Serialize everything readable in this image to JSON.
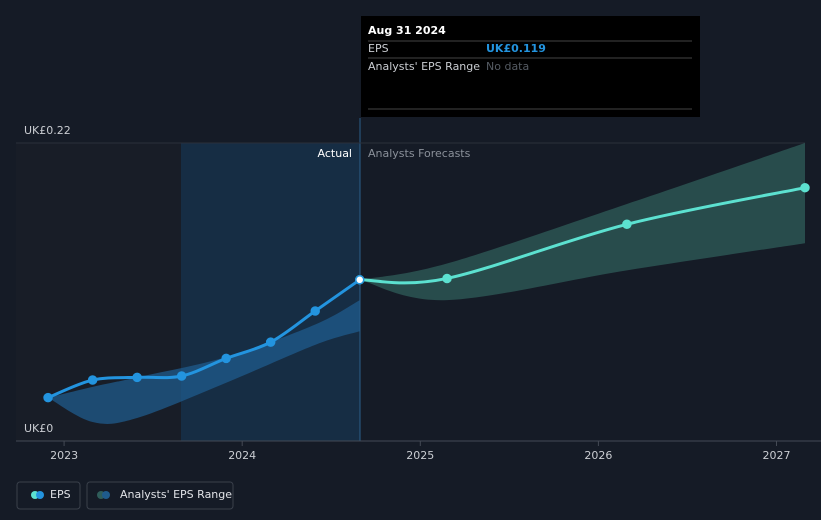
{
  "chart_data": {
    "type": "line",
    "y_axis_labels": [
      {
        "value": 0.22,
        "label": "UK£0.22"
      },
      {
        "value": 0,
        "label": "UK£0"
      }
    ],
    "ylim": [
      0,
      0.22
    ],
    "xlim": [
      2022.73,
      2027.16
    ],
    "xticks": [
      2023,
      2024,
      2025,
      2026,
      2027
    ],
    "region_labels": [
      "Actual",
      "Analysts Forecasts"
    ],
    "series": [
      {
        "name": "EPS",
        "color": "#2394df",
        "x": [
          2022.91,
          2023.16,
          2023.41,
          2023.66,
          2023.91,
          2024.16,
          2024.41,
          2024.66
        ],
        "values": [
          0.032,
          0.045,
          0.047,
          0.048,
          0.061,
          0.073,
          0.096,
          0.119
        ]
      }
    ],
    "forecast": {
      "color": "#5ce1d0",
      "x": [
        2024.66,
        2025.15,
        2026.16,
        2027.16
      ],
      "values": [
        0.119,
        0.12,
        0.16,
        0.187
      ]
    },
    "range_name": "Analysts' EPS Range",
    "ranges": [
      {
        "color": "#1f5b8c",
        "x": [
          2022.91,
          2023.16,
          2023.41,
          2023.91,
          2024.41,
          2024.66
        ],
        "low": [
          0.032,
          0.014,
          0.017,
          0.043,
          0.071,
          0.081
        ],
        "high": [
          0.032,
          0.04,
          0.047,
          0.062,
          0.086,
          0.104
        ]
      },
      {
        "color": "#2f5d5a",
        "x": [
          2024.66,
          2025.15,
          2026.16,
          2027.16
        ],
        "low": [
          0.119,
          0.104,
          0.126,
          0.146
        ],
        "high": [
          0.119,
          0.131,
          0.175,
          0.22
        ]
      }
    ],
    "tooltip": {
      "date": "Aug 31 2024",
      "rows": [
        [
          "EPS",
          "UK£0.119"
        ],
        [
          "Analysts' EPS Range",
          "No data"
        ]
      ]
    }
  }
}
